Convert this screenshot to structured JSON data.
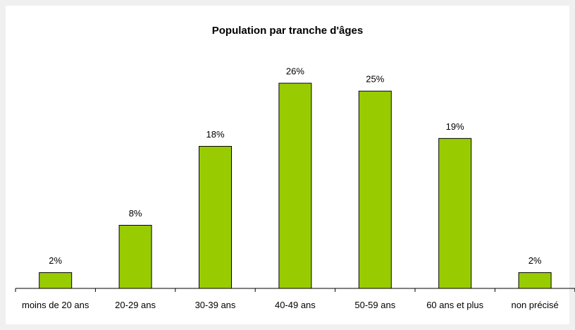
{
  "chart_data": {
    "type": "bar",
    "title": "Population par tranche d'âges",
    "categories": [
      "moins de 20 ans",
      "20-29 ans",
      "30-39 ans",
      "40-49 ans",
      "50-59 ans",
      "60 ans et plus",
      "non précisé"
    ],
    "values": [
      2,
      8,
      18,
      26,
      25,
      19,
      2
    ],
    "value_labels": [
      "2%",
      "8%",
      "18%",
      "26%",
      "25%",
      "19%",
      "2%"
    ],
    "color": "#99cc00"
  }
}
